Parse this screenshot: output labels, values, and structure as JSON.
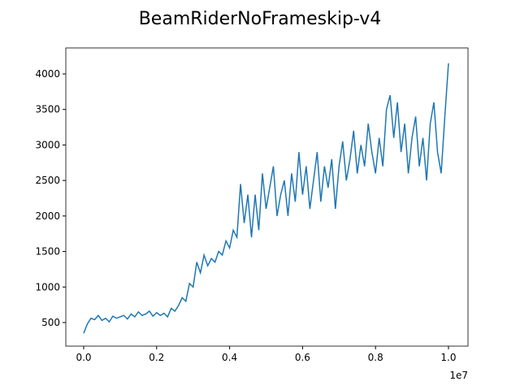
{
  "chart_data": {
    "type": "line",
    "title": "BeamRiderNoFrameskip-v4",
    "x": [
      0,
      100000,
      200000,
      300000,
      400000,
      500000,
      600000,
      700000,
      800000,
      900000,
      1000000,
      1100000,
      1200000,
      1300000,
      1400000,
      1500000,
      1600000,
      1700000,
      1800000,
      1900000,
      2000000,
      2100000,
      2200000,
      2300000,
      2400000,
      2500000,
      2600000,
      2700000,
      2800000,
      2900000,
      3000000,
      3100000,
      3200000,
      3300000,
      3400000,
      3500000,
      3600000,
      3700000,
      3800000,
      3900000,
      4000000,
      4100000,
      4200000,
      4300000,
      4400000,
      4500000,
      4600000,
      4700000,
      4800000,
      4900000,
      5000000,
      5100000,
      5200000,
      5300000,
      5400000,
      5500000,
      5600000,
      5700000,
      5800000,
      5900000,
      6000000,
      6100000,
      6200000,
      6300000,
      6400000,
      6500000,
      6600000,
      6700000,
      6800000,
      6900000,
      7000000,
      7100000,
      7200000,
      7300000,
      7400000,
      7500000,
      7600000,
      7700000,
      7800000,
      7900000,
      8000000,
      8100000,
      8200000,
      8300000,
      8400000,
      8500000,
      8600000,
      8700000,
      8800000,
      8900000,
      9000000,
      9100000,
      9200000,
      9300000,
      9400000,
      9500000,
      9600000,
      9700000,
      9800000,
      9900000,
      10000000
    ],
    "series": [
      {
        "color": "#1f77b4",
        "values": [
          350,
          480,
          560,
          540,
          600,
          530,
          560,
          510,
          590,
          560,
          580,
          600,
          550,
          620,
          580,
          650,
          600,
          620,
          660,
          590,
          640,
          600,
          630,
          580,
          700,
          660,
          740,
          850,
          800,
          1050,
          1000,
          1350,
          1200,
          1450,
          1300,
          1400,
          1350,
          1500,
          1450,
          1650,
          1550,
          1800,
          1700,
          2450,
          1900,
          2300,
          1700,
          2300,
          1800,
          2600,
          2100,
          2400,
          2700,
          2000,
          2300,
          2500,
          2000,
          2600,
          2200,
          2900,
          2300,
          2700,
          2100,
          2500,
          2900,
          2200,
          2700,
          2400,
          2800,
          2100,
          2700,
          3050,
          2500,
          2800,
          3200,
          2600,
          3000,
          2700,
          3300,
          2900,
          2600,
          3100,
          2700,
          3500,
          3700,
          3100,
          3600,
          2900,
          3300,
          2600,
          3100,
          3400,
          2700,
          3100,
          2500,
          3300,
          3600,
          2900,
          2600,
          3400,
          4150
        ]
      }
    ],
    "xlim": [
      -490000,
      10535000
    ],
    "ylim": [
      168,
      4366
    ],
    "xticks": [
      {
        "value": 0,
        "label": "0.0"
      },
      {
        "value": 2000000,
        "label": "0.2"
      },
      {
        "value": 4000000,
        "label": "0.4"
      },
      {
        "value": 6000000,
        "label": "0.6"
      },
      {
        "value": 8000000,
        "label": "0.8"
      },
      {
        "value": 10000000,
        "label": "1.0"
      }
    ],
    "x_offset_label": "1e7",
    "yticks": [
      500,
      1000,
      1500,
      2000,
      2500,
      3000,
      3500,
      4000
    ]
  }
}
